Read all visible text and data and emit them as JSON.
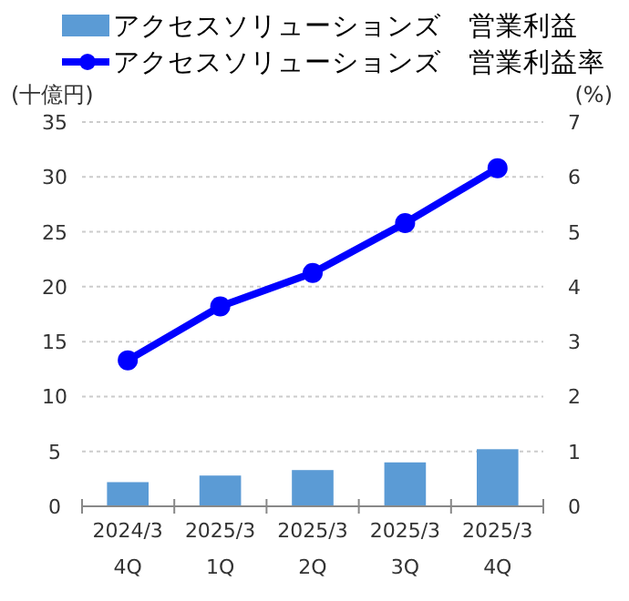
{
  "chart_data": {
    "type": "bar",
    "ylabel": "(十億円)",
    "y2label": "(%)",
    "categories": [
      "2024/3\n4Q",
      "2025/3\n1Q",
      "2025/3\n2Q",
      "2025/3\n3Q",
      "2025/3\n4Q"
    ],
    "series": [
      {
        "name": "アクセスソリューションズ　営業利益",
        "color": "#5b9bd5",
        "values": [
          2.2,
          2.8,
          3.3,
          4.0,
          5.2
        ]
      },
      {
        "name": "アクセスソリューションズ　営業利益率",
        "type": "line",
        "axis": "y2",
        "color": "#0000ff",
        "marker": "circle",
        "values": [
          2.66,
          3.64,
          4.25,
          5.16,
          6.16
        ]
      }
    ],
    "ylim": [
      0,
      35
    ],
    "yticks": [
      0,
      5,
      10,
      15,
      20,
      25,
      30,
      35
    ],
    "y2lim": [
      0,
      7
    ],
    "y2ticks": [
      0,
      1,
      2,
      3,
      4,
      5,
      6,
      7
    ],
    "grid": "y",
    "legend": "top"
  }
}
